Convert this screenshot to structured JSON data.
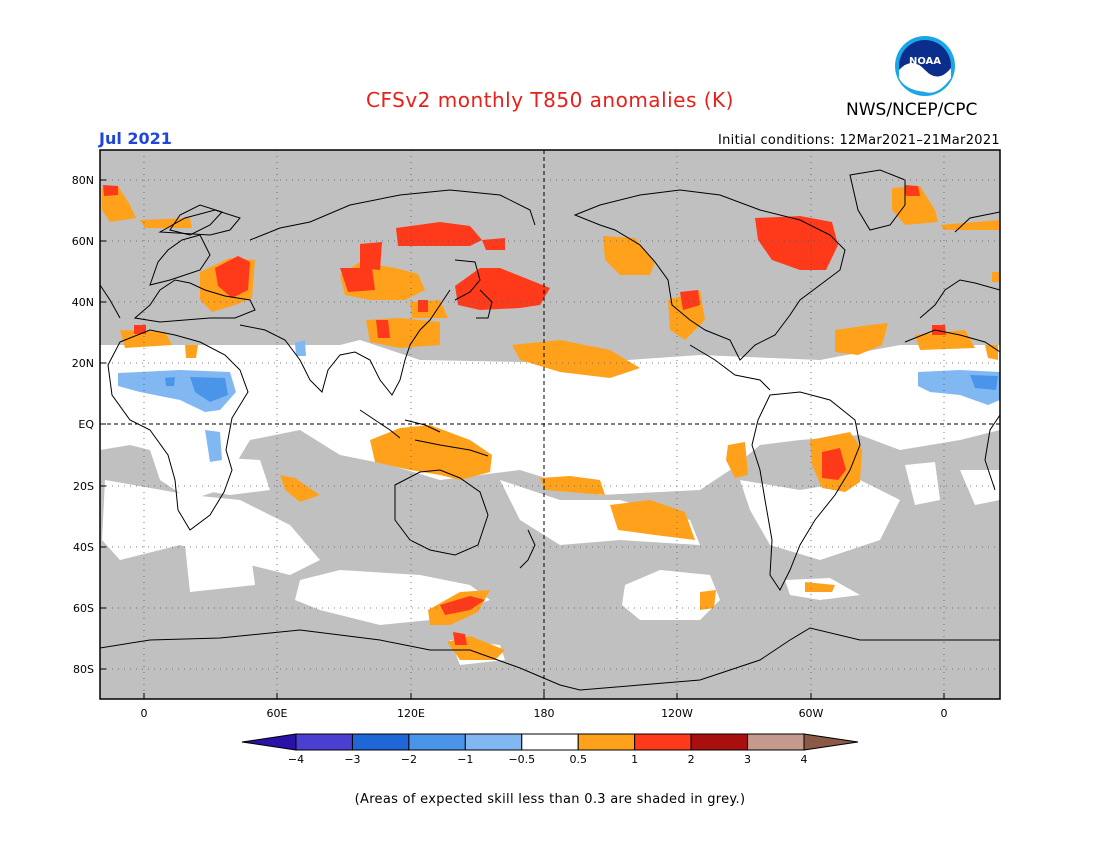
{
  "header": {
    "title": "CFSv2 monthly T850 anomalies (K)",
    "organization": "NWS/NCEP/CPC",
    "valid_month": "Jul 2021",
    "initial_conditions": "Initial conditions: 12Mar2021–21Mar2021",
    "logo": {
      "icon": "noaa-logo-icon",
      "text": "NOAA"
    }
  },
  "map": {
    "projection": "equirectangular",
    "central_longitude": 180,
    "lat_range": [
      -90,
      90
    ],
    "lon_range": [
      -25,
      385
    ],
    "lat_labels": [
      "80N",
      "60N",
      "40N",
      "20N",
      "EQ",
      "20S",
      "40S",
      "60S",
      "80S"
    ],
    "lon_labels": [
      "0",
      "60E",
      "120E",
      "180",
      "120W",
      "60W",
      "0"
    ],
    "grid": "dotted",
    "low_skill_color": "#c0c0c0"
  },
  "colorbar": {
    "labels": [
      "−4",
      "−3",
      "−2",
      "−1",
      "−0.5",
      "0.5",
      "1",
      "2",
      "3",
      "4"
    ],
    "colors": [
      "#2a12a8",
      "#4a3fd0",
      "#1f66d6",
      "#4a94ea",
      "#82b8f2",
      "#ffffff",
      "#ffa11a",
      "#ff3a1a",
      "#a80f0f",
      "#c49a8c",
      "#8a5a48"
    ]
  },
  "footer": {
    "caption": "(Areas of expected skill less than 0.3 are shaded in grey.)"
  }
}
